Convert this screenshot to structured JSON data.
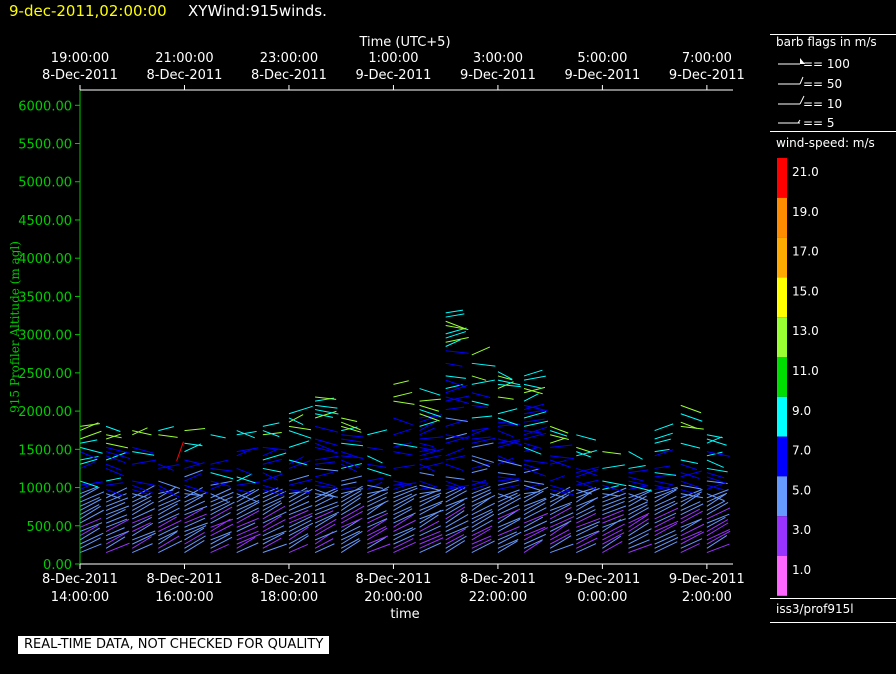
{
  "header": {
    "datetime": "9-dec-2011,02:00:00",
    "product": "XYWind:915winds."
  },
  "legend": {
    "barb_title": "barb flags in m/s",
    "barb_items": [
      "== 100",
      "== 50",
      "== 10",
      "== 5"
    ],
    "speed_title": "wind-speed: m/s",
    "speed_bins": [
      {
        "label": "21.0",
        "color": "#ff0000"
      },
      {
        "label": "19.0",
        "color": "#ff8c00"
      },
      {
        "label": "17.0",
        "color": "#ffaa00"
      },
      {
        "label": "15.0",
        "color": "#ffff00"
      },
      {
        "label": "13.0",
        "color": "#99ff33"
      },
      {
        "label": "11.0",
        "color": "#00dd00"
      },
      {
        "label": "9.0",
        "color": "#00ffff"
      },
      {
        "label": "7.0",
        "color": "#0000ff"
      },
      {
        "label": "5.0",
        "color": "#6699ff"
      },
      {
        "label": "3.0",
        "color": "#9933ff"
      },
      {
        "label": "1.0",
        "color": "#ff66ff"
      }
    ],
    "source": "iss3/prof915l"
  },
  "footer": {
    "quality_note": "REAL-TIME DATA, NOT CHECKED FOR QUALITY"
  },
  "chart_data": {
    "type": "scatter",
    "title": "",
    "ylabel": "915 Profiler Altitude (m agl)",
    "xlabel": "time",
    "top_axis_title": "Time (UTC+5)",
    "ylim": [
      0,
      6200
    ],
    "y_ticks": [
      "0.00",
      "500.00",
      "1000.00",
      "1500.00",
      "2000.00",
      "2500.00",
      "3000.00",
      "3500.00",
      "4000.00",
      "4500.00",
      "5000.00",
      "5500.00",
      "6000.00"
    ],
    "xlim_hours": [
      14,
      26.5
    ],
    "bottom_ticks": [
      {
        "hour": 14,
        "date": "8-Dec-2011",
        "time": "14:00:00"
      },
      {
        "hour": 16,
        "date": "8-Dec-2011",
        "time": "16:00:00"
      },
      {
        "hour": 18,
        "date": "8-Dec-2011",
        "time": "18:00:00"
      },
      {
        "hour": 20,
        "date": "8-Dec-2011",
        "time": "20:00:00"
      },
      {
        "hour": 22,
        "date": "8-Dec-2011",
        "time": "22:00:00"
      },
      {
        "hour": 24,
        "date": "9-Dec-2011",
        "time": "0:00:00"
      },
      {
        "hour": 26,
        "date": "9-Dec-2011",
        "time": "2:00:00"
      }
    ],
    "top_ticks": [
      {
        "hour": 14,
        "time": "19:00:00",
        "date": "8-Dec-2011"
      },
      {
        "hour": 16,
        "time": "21:00:00",
        "date": "8-Dec-2011"
      },
      {
        "hour": 18,
        "time": "23:00:00",
        "date": "8-Dec-2011"
      },
      {
        "hour": 20,
        "time": "1:00:00",
        "date": "9-Dec-2011"
      },
      {
        "hour": 22,
        "time": "3:00:00",
        "date": "9-Dec-2011"
      },
      {
        "hour": 24,
        "time": "5:00:00",
        "date": "9-Dec-2011"
      },
      {
        "hour": 26,
        "time": "7:00:00",
        "date": "9-Dec-2011"
      }
    ],
    "series_note": "",
    "profiles": [
      {
        "hour": 14.0,
        "top": 1800
      },
      {
        "hour": 14.5,
        "top": 1800
      },
      {
        "hour": 15.0,
        "top": 1900
      },
      {
        "hour": 15.5,
        "top": 1950
      },
      {
        "hour": 16.0,
        "top": 1900
      },
      {
        "hour": 16.5,
        "top": 1850
      },
      {
        "hour": 17.0,
        "top": 1800
      },
      {
        "hour": 17.5,
        "top": 1850
      },
      {
        "hour": 18.0,
        "top": 2000
      },
      {
        "hour": 18.5,
        "top": 2200
      },
      {
        "hour": 19.0,
        "top": 2000
      },
      {
        "hour": 19.5,
        "top": 1850
      },
      {
        "hour": 20.0,
        "top": 2450
      },
      {
        "hour": 20.5,
        "top": 2300
      },
      {
        "hour": 21.0,
        "top": 3300
      },
      {
        "hour": 21.5,
        "top": 2750
      },
      {
        "hour": 22.0,
        "top": 2550
      },
      {
        "hour": 22.5,
        "top": 2500
      },
      {
        "hour": 23.0,
        "top": 1800
      },
      {
        "hour": 23.5,
        "top": 1700
      },
      {
        "hour": 24.0,
        "top": 1550
      },
      {
        "hour": 24.5,
        "top": 1500
      },
      {
        "hour": 25.0,
        "top": 1900
      },
      {
        "hour": 25.5,
        "top": 2100
      },
      {
        "hour": 26.0,
        "top": 1850
      }
    ]
  }
}
